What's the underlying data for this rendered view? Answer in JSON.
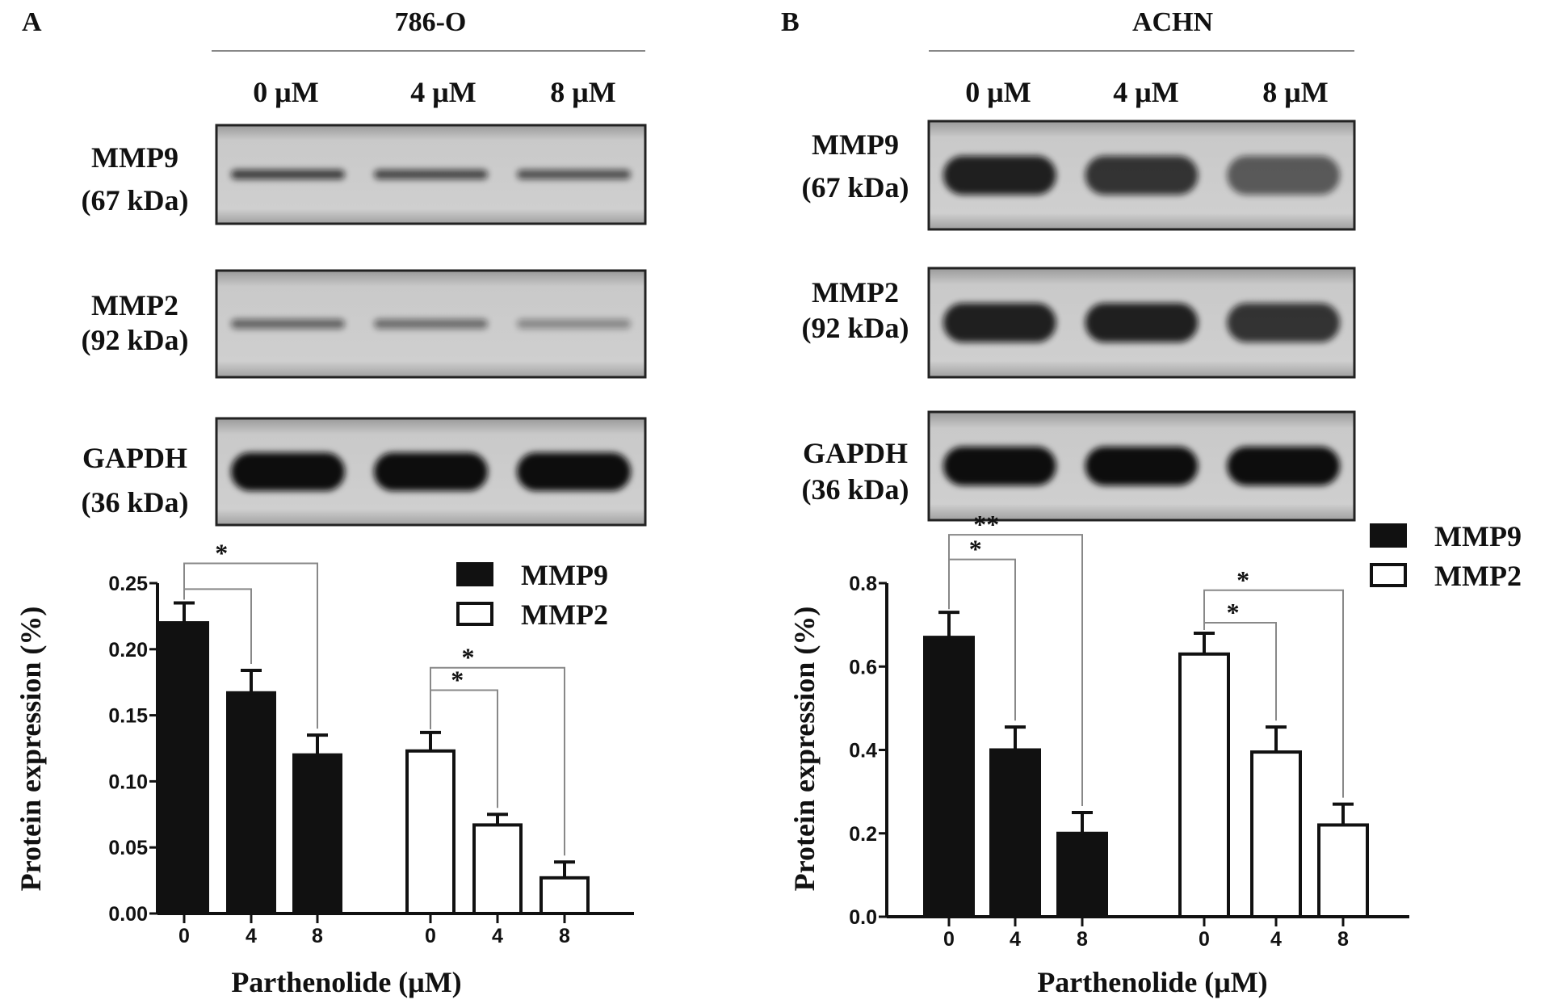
{
  "panels": [
    {
      "letter": "A",
      "cell_line": "786-O",
      "lanes": [
        "0 μM",
        "4 μM",
        "8 μM"
      ],
      "blots": [
        {
          "name": "MMP9",
          "size": "(67 kDa)",
          "intensity": [
            0.75,
            0.7,
            0.65
          ],
          "band_thickness": "thin"
        },
        {
          "name": "MMP2",
          "size": "(92 kDa)",
          "intensity": [
            0.55,
            0.5,
            0.35
          ],
          "band_thickness": "thin"
        },
        {
          "name": "GAPDH",
          "size": "(36 kDa)",
          "intensity": [
            1,
            1,
            1
          ],
          "band_thickness": "thick"
        }
      ]
    },
    {
      "letter": "B",
      "cell_line": "ACHN",
      "lanes": [
        "0 μM",
        "4 μM",
        "8 μM"
      ],
      "blots": [
        {
          "name": "MMP9",
          "size": "(67 kDa)",
          "intensity": [
            0.9,
            0.8,
            0.6
          ],
          "band_thickness": "thick"
        },
        {
          "name": "MMP2",
          "size": "(92 kDa)",
          "intensity": [
            0.9,
            0.9,
            0.8
          ],
          "band_thickness": "thick"
        },
        {
          "name": "GAPDH",
          "size": "(36 kDa)",
          "intensity": [
            1,
            1,
            1
          ],
          "band_thickness": "thick"
        }
      ]
    }
  ],
  "chart_data": [
    {
      "type": "bar",
      "xlabel": "Parthenolide (μM)",
      "ylabel": "Protein expression (%)",
      "ylim": [
        0,
        0.25
      ],
      "yticks": [
        "0.00",
        "0.05",
        "0.10",
        "0.15",
        "0.20",
        "0.25"
      ],
      "legend_position": "top-right",
      "series": [
        {
          "name": "MMP9",
          "fill": "#111111",
          "categories": [
            "0",
            "4",
            "8"
          ],
          "values": [
            0.22,
            0.167,
            0.12
          ],
          "errors": [
            0.015,
            0.017,
            0.015
          ]
        },
        {
          "name": "MMP2",
          "fill": "#ffffff",
          "categories": [
            "0",
            "4",
            "8"
          ],
          "values": [
            0.123,
            0.067,
            0.027
          ],
          "errors": [
            0.014,
            0.008,
            0.012
          ]
        }
      ],
      "significance": [
        {
          "series": 0,
          "from": 0,
          "to": 1,
          "level": 0.2455,
          "label": ""
        },
        {
          "series": 0,
          "from": 0,
          "to": 2,
          "level": 0.265,
          "label": "*"
        },
        {
          "series": 1,
          "from": 0,
          "to": 1,
          "level": 0.169,
          "label": "*"
        },
        {
          "series": 1,
          "from": 0,
          "to": 2,
          "level": 0.186,
          "label": "*"
        }
      ]
    },
    {
      "type": "bar",
      "xlabel": "Parthenolide (μM)",
      "ylabel": "Protein expression (%)",
      "ylim": [
        0,
        0.8
      ],
      "yticks": [
        "0.0",
        "0.2",
        "0.4",
        "0.6",
        "0.8"
      ],
      "legend_position": "top-right",
      "series": [
        {
          "name": "MMP9",
          "fill": "#111111",
          "categories": [
            "0",
            "4",
            "8"
          ],
          "values": [
            0.67,
            0.4,
            0.2
          ],
          "errors": [
            0.06,
            0.055,
            0.05
          ]
        },
        {
          "name": "MMP2",
          "fill": "#ffffff",
          "categories": [
            "0",
            "4",
            "8"
          ],
          "values": [
            0.63,
            0.395,
            0.22
          ],
          "errors": [
            0.05,
            0.06,
            0.05
          ]
        }
      ],
      "significance": [
        {
          "series": 0,
          "from": 0,
          "to": 1,
          "level": 0.857,
          "label": "*"
        },
        {
          "series": 0,
          "from": 0,
          "to": 2,
          "level": 0.916,
          "label": "**"
        },
        {
          "series": 1,
          "from": 0,
          "to": 1,
          "level": 0.705,
          "label": "*"
        },
        {
          "series": 1,
          "from": 0,
          "to": 2,
          "level": 0.783,
          "label": "*"
        }
      ]
    }
  ]
}
